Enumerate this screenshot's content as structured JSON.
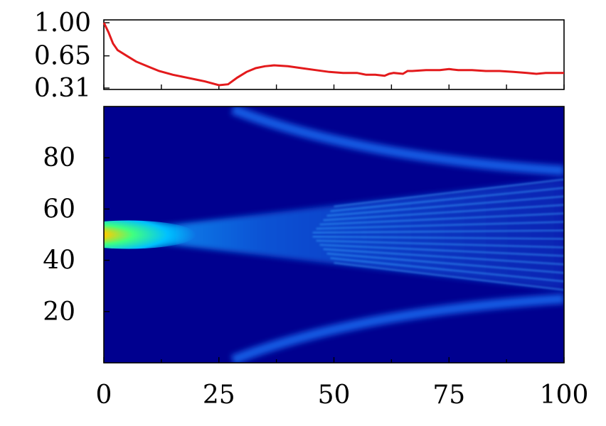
{
  "chart_data": [
    {
      "type": "line",
      "title": "",
      "xlabel": "",
      "ylabel": "",
      "xlim": [
        0,
        100
      ],
      "ylim": [
        0.31,
        1.0
      ],
      "yticks": [
        "1.00",
        "0.65",
        "0.31"
      ],
      "grid": false,
      "series": [
        {
          "color": "#e31a1c",
          "x": [
            0,
            1,
            2,
            3,
            5,
            7,
            10,
            12,
            15,
            18,
            20,
            22,
            25,
            27,
            29,
            31,
            33,
            35,
            37,
            40,
            43,
            46,
            49,
            52,
            55,
            57,
            59,
            61,
            62,
            63,
            65,
            66,
            67,
            70,
            73,
            75,
            77,
            80,
            83,
            86,
            89,
            92,
            94,
            96,
            98,
            100
          ],
          "y": [
            1.0,
            0.9,
            0.78,
            0.71,
            0.65,
            0.59,
            0.53,
            0.49,
            0.45,
            0.42,
            0.4,
            0.38,
            0.34,
            0.35,
            0.42,
            0.48,
            0.52,
            0.54,
            0.55,
            0.54,
            0.52,
            0.5,
            0.48,
            0.47,
            0.47,
            0.45,
            0.45,
            0.44,
            0.46,
            0.47,
            0.46,
            0.49,
            0.49,
            0.5,
            0.5,
            0.51,
            0.5,
            0.5,
            0.49,
            0.49,
            0.48,
            0.47,
            0.46,
            0.47,
            0.47,
            0.47
          ]
        }
      ]
    },
    {
      "type": "heatmap",
      "title": "",
      "xlabel": "",
      "ylabel": "",
      "xlim": [
        0,
        100
      ],
      "ylim": [
        0,
        100
      ],
      "xticks": [
        "0",
        "25",
        "50",
        "75",
        "100"
      ],
      "yticks": [
        "20",
        "40",
        "60",
        "80"
      ],
      "colormap": "jet",
      "colors": {
        "background": "#00008f",
        "mid": "#0080ff",
        "high": "#ffff00",
        "peak": "#ff2000"
      },
      "source_position": [
        0,
        50
      ],
      "features": [
        {
          "kind": "central_beam",
          "x_start": 0,
          "x_end": 100,
          "y_center": 50,
          "y_lower_at_end": 28,
          "y_upper_at_end": 72
        },
        {
          "kind": "upper_arc",
          "x_start": 28,
          "x_end": 100,
          "y_start": 100,
          "y_end": 75
        },
        {
          "kind": "lower_arc",
          "x_start": 28,
          "x_end": 100,
          "y_start": 0,
          "y_end": 25
        }
      ]
    }
  ]
}
